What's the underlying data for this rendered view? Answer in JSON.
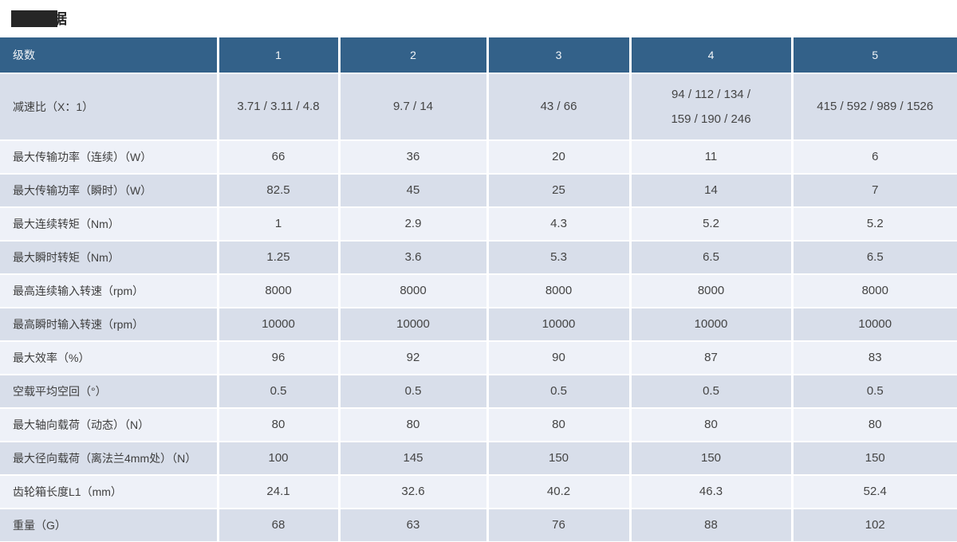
{
  "title": {
    "visible_char": "据"
  },
  "colors": {
    "header_bg": "#336189",
    "row_dark": "#d8deea",
    "row_light": "#eef1f8",
    "redaction": "#262626",
    "header_text": "#f2f5f8",
    "body_text": "#444444"
  },
  "chart_data": {
    "type": "table",
    "title": "据",
    "header_label": "级数",
    "columns": [
      "1",
      "2",
      "3",
      "4",
      "5"
    ]
  },
  "table": {
    "header": {
      "label": "级数",
      "columns": [
        "1",
        "2",
        "3",
        "4",
        "5"
      ]
    },
    "rows": [
      {
        "label": "减速比（X：1）",
        "values": [
          "3.71 / 3.11 / 4.8",
          "9.7 / 14",
          "43 / 66",
          "94 / 112 / 134 /\n159 / 190 / 246",
          "415 / 592 / 989 / 1526"
        ]
      },
      {
        "label": "最大传输功率（连续）（W）",
        "values": [
          "66",
          "36",
          "20",
          "11",
          "6"
        ]
      },
      {
        "label": "最大传输功率（瞬时）（W）",
        "values": [
          "82.5",
          "45",
          "25",
          "14",
          "7"
        ]
      },
      {
        "label": "最大连续转矩（Nm）",
        "values": [
          "1",
          "2.9",
          "4.3",
          "5.2",
          "5.2"
        ]
      },
      {
        "label": "最大瞬时转矩（Nm）",
        "values": [
          "1.25",
          "3.6",
          "5.3",
          "6.5",
          "6.5"
        ]
      },
      {
        "label": "最高连续输入转速（rpm）",
        "values": [
          "8000",
          "8000",
          "8000",
          "8000",
          "8000"
        ]
      },
      {
        "label": "最高瞬时输入转速（rpm）",
        "values": [
          "10000",
          "10000",
          "10000",
          "10000",
          "10000"
        ]
      },
      {
        "label": "最大效率（%）",
        "values": [
          "96",
          "92",
          "90",
          "87",
          "83"
        ]
      },
      {
        "label": "空载平均空回（°）",
        "values": [
          "0.5",
          "0.5",
          "0.5",
          "0.5",
          "0.5"
        ]
      },
      {
        "label": "最大轴向载荷（动态）（N）",
        "values": [
          "80",
          "80",
          "80",
          "80",
          "80"
        ]
      },
      {
        "label": "最大径向载荷（离法兰4mm处）（N）",
        "values": [
          "100",
          "145",
          "150",
          "150",
          "150"
        ]
      },
      {
        "label": "齿轮箱长度L1（mm）",
        "values": [
          "24.1",
          "32.6",
          "40.2",
          "46.3",
          "52.4"
        ]
      },
      {
        "label": "重量（G）",
        "values": [
          "68",
          "63",
          "76",
          "88",
          "102"
        ]
      }
    ]
  }
}
